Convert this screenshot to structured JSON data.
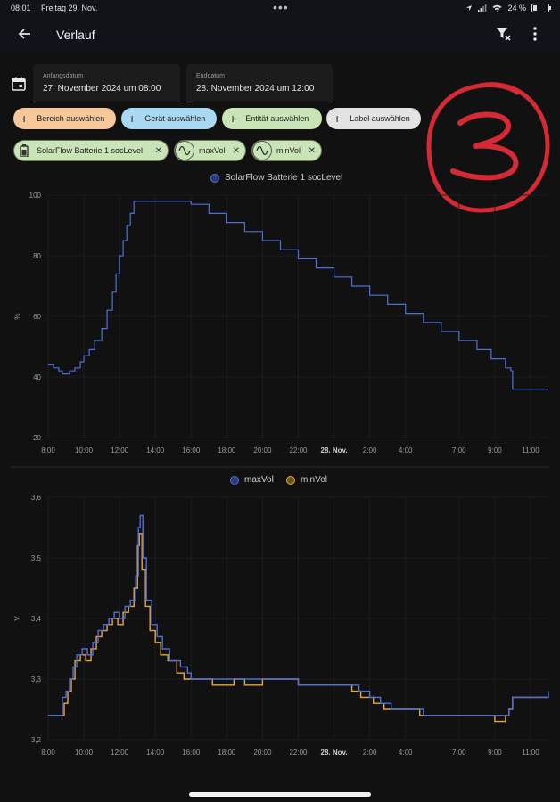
{
  "status": {
    "time": "08:01",
    "date": "Freitag 29. Nov.",
    "battery": "24 %"
  },
  "appbar": {
    "title": "Verlauf"
  },
  "range": {
    "start_label": "Anfangsdatum",
    "start_value": "27. November 2024 um 08:00",
    "end_label": "Enddatum",
    "end_value": "28. November 2024 um 12:00"
  },
  "filters": {
    "area": "Bereich auswählen",
    "device": "Gerät auswählen",
    "entity": "Entität auswählen",
    "label": "Label auswählen"
  },
  "entities": [
    {
      "label": "SolarFlow Batterie 1 socLevel",
      "icon": "battery-icon"
    },
    {
      "label": "maxVol",
      "icon": "sine-wave-icon"
    },
    {
      "label": "minVol",
      "icon": "sine-wave-icon"
    }
  ],
  "annotation": "3",
  "colors": {
    "blue": "#4e6fd6",
    "orange": "#e8a735",
    "area_chip": "#f7c89a",
    "device_chip": "#a9d9f2",
    "entity_chip": "#c9e4b6",
    "label_chip": "#e3e3e3",
    "annotation": "#d42a35"
  },
  "chart_data": [
    {
      "type": "line",
      "step": true,
      "legend": "SolarFlow Batterie 1 socLevel",
      "ylabel": "%",
      "yticks": [
        20,
        40,
        60,
        80,
        100
      ],
      "ylim": [
        20,
        100
      ],
      "xlim": [
        0,
        28
      ],
      "x_tick_labels": [
        {
          "x": 0,
          "label": "8:00"
        },
        {
          "x": 2,
          "label": "10:00"
        },
        {
          "x": 4,
          "label": "12:00"
        },
        {
          "x": 6,
          "label": "14:00"
        },
        {
          "x": 8,
          "label": "16:00"
        },
        {
          "x": 10,
          "label": "18:00"
        },
        {
          "x": 12,
          "label": "20:00"
        },
        {
          "x": 14,
          "label": "22:00"
        },
        {
          "x": 16,
          "label": "28. Nov.",
          "bold": true
        },
        {
          "x": 18,
          "label": "2:00"
        },
        {
          "x": 20,
          "label": "4:00"
        },
        {
          "x": 23,
          "label": "7:00"
        },
        {
          "x": 25,
          "label": "9:00"
        },
        {
          "x": 27,
          "label": "11:00"
        }
      ],
      "series": [
        {
          "name": "SolarFlow Batterie 1 socLevel",
          "color": "#4e6fd6",
          "points": [
            [
              0,
              44
            ],
            [
              0.3,
              43
            ],
            [
              0.6,
              42
            ],
            [
              0.8,
              41
            ],
            [
              1.0,
              41
            ],
            [
              1.2,
              42
            ],
            [
              1.5,
              43
            ],
            [
              1.8,
              45
            ],
            [
              2.0,
              47
            ],
            [
              2.3,
              49
            ],
            [
              2.6,
              52
            ],
            [
              3.0,
              56
            ],
            [
              3.3,
              62
            ],
            [
              3.6,
              68
            ],
            [
              3.8,
              74
            ],
            [
              4.0,
              80
            ],
            [
              4.2,
              85
            ],
            [
              4.4,
              90
            ],
            [
              4.6,
              94
            ],
            [
              4.8,
              98
            ],
            [
              5.0,
              98
            ],
            [
              6.0,
              98
            ],
            [
              7.5,
              98
            ],
            [
              8.0,
              97
            ],
            [
              9.0,
              94
            ],
            [
              10.0,
              91
            ],
            [
              11.0,
              88
            ],
            [
              12.0,
              85
            ],
            [
              13.0,
              82
            ],
            [
              14.0,
              79
            ],
            [
              15.0,
              76
            ],
            [
              16.0,
              73
            ],
            [
              17.0,
              70
            ],
            [
              18.0,
              67
            ],
            [
              19.0,
              64
            ],
            [
              20.0,
              61
            ],
            [
              21.0,
              58
            ],
            [
              22.0,
              55
            ],
            [
              23.0,
              52
            ],
            [
              24.0,
              49
            ],
            [
              24.8,
              46
            ],
            [
              25.6,
              43
            ],
            [
              25.9,
              42
            ],
            [
              26,
              36
            ],
            [
              28,
              36
            ]
          ]
        }
      ]
    },
    {
      "type": "line",
      "step": true,
      "legend": [
        "maxVol",
        "minVol"
      ],
      "ylabel": "V",
      "yticks": [
        3.2,
        3.3,
        3.4,
        3.5,
        3.6
      ],
      "ylim": [
        3.2,
        3.6
      ],
      "xlim": [
        0,
        28
      ],
      "series": [
        {
          "name": "maxVol",
          "color": "#4e6fd6",
          "points": [
            [
              0,
              3.24
            ],
            [
              0.6,
              3.24
            ],
            [
              0.8,
              3.27
            ],
            [
              1.0,
              3.28
            ],
            [
              1.2,
              3.3
            ],
            [
              1.4,
              3.32
            ],
            [
              1.6,
              3.34
            ],
            [
              1.9,
              3.35
            ],
            [
              2.2,
              3.34
            ],
            [
              2.5,
              3.36
            ],
            [
              2.8,
              3.38
            ],
            [
              3.1,
              3.39
            ],
            [
              3.4,
              3.4
            ],
            [
              3.7,
              3.41
            ],
            [
              4.0,
              3.4
            ],
            [
              4.3,
              3.42
            ],
            [
              4.6,
              3.43
            ],
            [
              4.9,
              3.47
            ],
            [
              5.05,
              3.55
            ],
            [
              5.15,
              3.57
            ],
            [
              5.3,
              3.5
            ],
            [
              5.5,
              3.43
            ],
            [
              5.8,
              3.39
            ],
            [
              6.1,
              3.37
            ],
            [
              6.4,
              3.35
            ],
            [
              6.8,
              3.33
            ],
            [
              7.4,
              3.32
            ],
            [
              7.8,
              3.31
            ],
            [
              8.0,
              3.3
            ],
            [
              10.0,
              3.3
            ],
            [
              12.0,
              3.3
            ],
            [
              14.0,
              3.29
            ],
            [
              16.0,
              3.29
            ],
            [
              17.0,
              3.29
            ],
            [
              17.4,
              3.28
            ],
            [
              18.0,
              3.27
            ],
            [
              18.6,
              3.26
            ],
            [
              19.2,
              3.25
            ],
            [
              20.0,
              3.25
            ],
            [
              21.0,
              3.24
            ],
            [
              23.0,
              3.24
            ],
            [
              24.0,
              3.24
            ],
            [
              25.0,
              3.24
            ],
            [
              25.8,
              3.25
            ],
            [
              26.0,
              3.27
            ],
            [
              27.0,
              3.27
            ],
            [
              28.0,
              3.28
            ]
          ]
        },
        {
          "name": "minVol",
          "color": "#e8a735",
          "points": [
            [
              0,
              3.24
            ],
            [
              0.7,
              3.24
            ],
            [
              0.9,
              3.26
            ],
            [
              1.1,
              3.28
            ],
            [
              1.3,
              3.3
            ],
            [
              1.5,
              3.33
            ],
            [
              1.8,
              3.34
            ],
            [
              2.1,
              3.33
            ],
            [
              2.4,
              3.35
            ],
            [
              2.7,
              3.37
            ],
            [
              3.0,
              3.38
            ],
            [
              3.3,
              3.39
            ],
            [
              3.6,
              3.4
            ],
            [
              3.9,
              3.39
            ],
            [
              4.2,
              3.41
            ],
            [
              4.5,
              3.42
            ],
            [
              4.8,
              3.45
            ],
            [
              5.0,
              3.52
            ],
            [
              5.1,
              3.54
            ],
            [
              5.25,
              3.48
            ],
            [
              5.45,
              3.42
            ],
            [
              5.7,
              3.38
            ],
            [
              6.0,
              3.36
            ],
            [
              6.3,
              3.34
            ],
            [
              6.7,
              3.33
            ],
            [
              7.2,
              3.31
            ],
            [
              7.6,
              3.3
            ],
            [
              8.0,
              3.3
            ],
            [
              9.2,
              3.29
            ],
            [
              10.4,
              3.3
            ],
            [
              11.0,
              3.29
            ],
            [
              12.0,
              3.3
            ],
            [
              14.0,
              3.29
            ],
            [
              16.0,
              3.29
            ],
            [
              17.0,
              3.28
            ],
            [
              17.5,
              3.27
            ],
            [
              18.2,
              3.26
            ],
            [
              18.8,
              3.25
            ],
            [
              19.4,
              3.25
            ],
            [
              20.0,
              3.25
            ],
            [
              20.8,
              3.24
            ],
            [
              22.6,
              3.24
            ],
            [
              23.6,
              3.24
            ],
            [
              24.0,
              3.24
            ],
            [
              25.0,
              3.23
            ],
            [
              25.6,
              3.24
            ],
            [
              25.8,
              3.25
            ],
            [
              26.0,
              3.27
            ],
            [
              27.0,
              3.27
            ],
            [
              28.0,
              3.27
            ]
          ]
        }
      ]
    }
  ]
}
